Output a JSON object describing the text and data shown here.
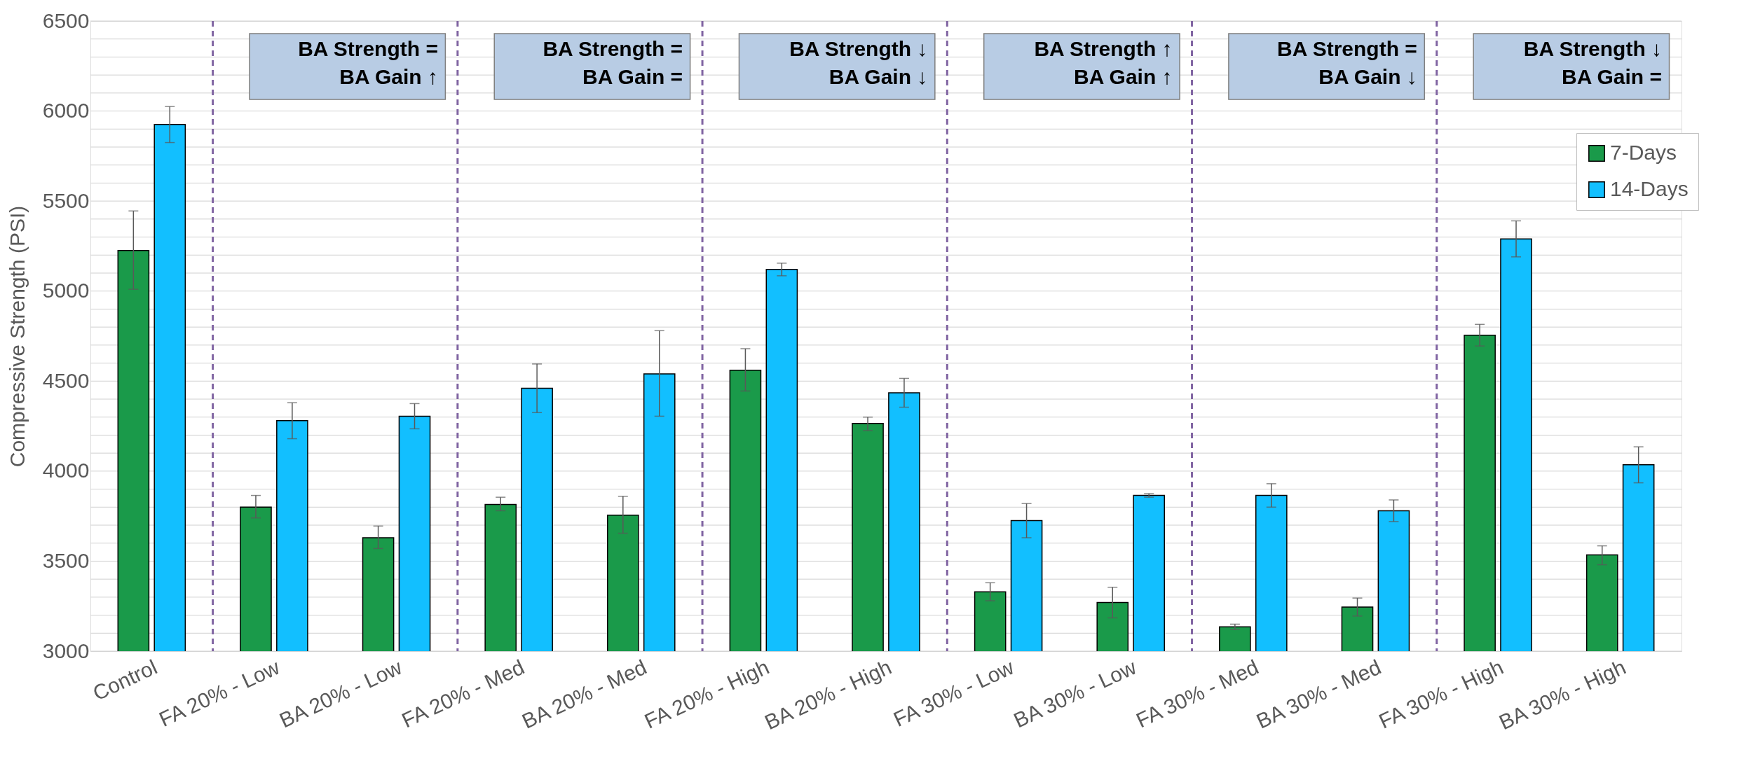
{
  "chart_data": {
    "type": "bar",
    "ylabel": "Compressive Strength (PSI)",
    "categories": [
      "Control",
      "FA 20% - Low",
      "BA 20% - Low",
      "FA 20% - Med",
      "BA 20% - Med",
      "FA 20% - High",
      "BA 20% - High",
      "FA 30% - Low",
      "BA 30% - Low",
      "FA 30% - Med",
      "BA 30% - Med",
      "FA 30% - High",
      "BA 30% - High"
    ],
    "series": [
      {
        "name": "7-Days",
        "color": "#1a9a4a",
        "values": [
          5225,
          3800,
          3630,
          3815,
          3755,
          4560,
          4265,
          3330,
          3270,
          3135,
          3245,
          4755,
          3535
        ],
        "errors": [
          [
            5010,
            5445
          ],
          [
            3740,
            3865
          ],
          [
            3570,
            3695
          ],
          [
            3780,
            3855
          ],
          [
            3655,
            3860
          ],
          [
            4445,
            4680
          ],
          [
            4225,
            4300
          ],
          [
            3280,
            3380
          ],
          [
            3185,
            3355
          ],
          [
            3120,
            3150
          ],
          [
            3195,
            3295
          ],
          [
            4695,
            4815
          ],
          [
            3480,
            3585
          ]
        ]
      },
      {
        "name": "14-Days",
        "color": "#12bfff",
        "values": [
          5925,
          4280,
          4305,
          4460,
          4540,
          5120,
          4435,
          3725,
          3865,
          3865,
          3780,
          5290,
          4035
        ],
        "errors": [
          [
            5825,
            6025
          ],
          [
            4180,
            4380
          ],
          [
            4235,
            4375
          ],
          [
            4325,
            4595
          ],
          [
            4305,
            4780
          ],
          [
            5085,
            5155
          ],
          [
            4355,
            4515
          ],
          [
            3630,
            3820
          ],
          [
            3855,
            3875
          ],
          [
            3800,
            3930
          ],
          [
            3720,
            3840
          ],
          [
            5190,
            5390
          ],
          [
            3935,
            4135
          ]
        ]
      }
    ],
    "ylim": [
      3000,
      6500
    ],
    "yticks": [
      3000,
      {
        "value": 3100,
        "label": null
      },
      {
        "value": 3200,
        "label": null
      },
      {
        "value": 3300,
        "label": null
      },
      {
        "value": 3400,
        "label": null
      },
      3500,
      {
        "value": 3600,
        "label": null
      },
      {
        "value": 3700,
        "label": null
      },
      {
        "value": 3800,
        "label": null
      },
      {
        "value": 3900,
        "label": null
      },
      4000,
      {
        "value": 4100,
        "label": null
      },
      {
        "value": 4200,
        "label": null
      },
      {
        "value": 4300,
        "label": null
      },
      {
        "value": 4400,
        "label": null
      },
      4500,
      {
        "value": 4600,
        "label": null
      },
      {
        "value": 4700,
        "label": null
      },
      {
        "value": 4800,
        "label": null
      },
      {
        "value": 4900,
        "label": null
      },
      5000,
      {
        "value": 5100,
        "label": null
      },
      {
        "value": 5200,
        "label": null
      },
      {
        "value": 5300,
        "label": null
      },
      {
        "value": 5400,
        "label": null
      },
      5500,
      {
        "value": 5600,
        "label": null
      },
      {
        "value": 5700,
        "label": null
      },
      {
        "value": 5800,
        "label": null
      },
      {
        "value": 5900,
        "label": null
      },
      6000,
      {
        "value": 6100,
        "label": null
      },
      {
        "value": 6200,
        "label": null
      },
      {
        "value": 6300,
        "label": null
      },
      {
        "value": 6400,
        "label": null
      },
      6500
    ],
    "grid": "y",
    "legend": "top right",
    "annotations": [
      "BA Strength  =\nBA Gain ↑",
      "BA Strength  =\nBA Gain  =",
      "BA Strength ↓\nBA Gain ↓",
      "BA Strength ↑\nBA Gain ↑",
      "BA Strength  =\nBA Gain ↓",
      "BA Strength ↓\nBA Gain  ="
    ]
  }
}
